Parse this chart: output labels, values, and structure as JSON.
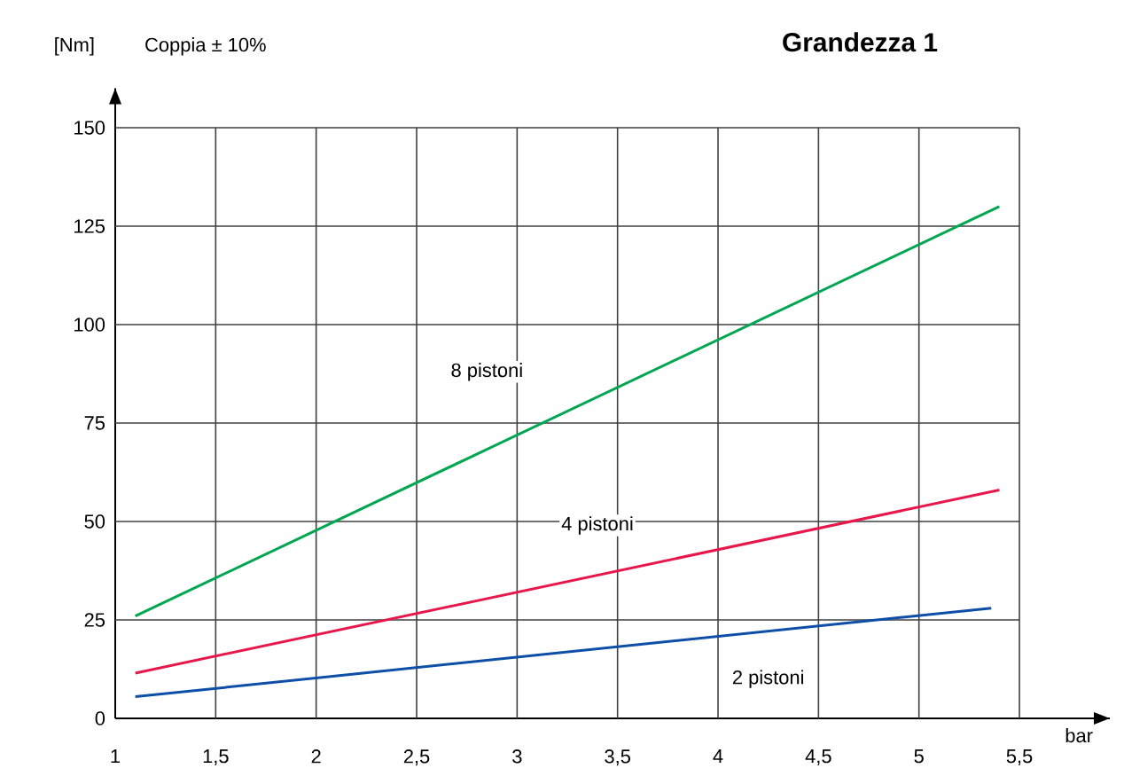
{
  "chart_data": {
    "type": "line",
    "title": "Grandezza 1",
    "xlabel": "bar",
    "ylabel": "Coppia ± 10%",
    "annotations": [
      "[Nm]"
    ],
    "x": [
      1.1,
      5.4
    ],
    "series": [
      {
        "name": "8 pistoni",
        "color": "#00a651",
        "values": [
          26,
          130
        ]
      },
      {
        "name": "4 pistoni",
        "color": "#e8174b",
        "values": [
          11.5,
          58
        ]
      },
      {
        "name": "2 pistoni",
        "color": "#0d4ea6",
        "x": [
          1.1,
          5.36
        ],
        "values": [
          5.5,
          28
        ]
      }
    ],
    "xlim": [
      1,
      5.95
    ],
    "ylim": [
      0,
      160
    ],
    "xticks": [
      1,
      {
        "value": 1.5,
        "label": "1,5"
      },
      2,
      {
        "value": 2.5,
        "label": "2,5"
      },
      3,
      {
        "value": 3.5,
        "label": "3,5"
      },
      4,
      {
        "value": 4.5,
        "label": "4,5"
      },
      5,
      {
        "value": 5.5,
        "label": "5,5"
      }
    ],
    "yticks": [
      0,
      25,
      50,
      75,
      100,
      125,
      150
    ],
    "grid": true,
    "legend": false,
    "marker": "none",
    "line_style": "solid"
  }
}
